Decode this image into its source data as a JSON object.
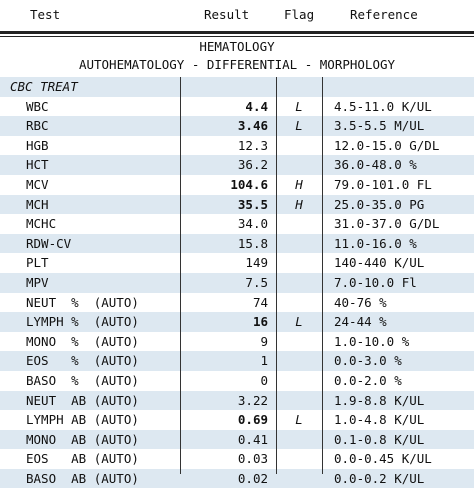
{
  "header": {
    "test": "Test",
    "result": "Result",
    "flag": "Flag",
    "reference": "Reference"
  },
  "section": {
    "line1": "HEMATOLOGY",
    "line2": "AUTOHEMATOLOGY - DIFFERENTIAL - MORPHOLOGY"
  },
  "subheader": "CBC TREAT",
  "rows": [
    {
      "test": "WBC",
      "result": "4.4",
      "bold": true,
      "flag": "L",
      "reference": "4.5-11.0 K/UL"
    },
    {
      "test": "RBC",
      "result": "3.46",
      "bold": true,
      "flag": "L",
      "reference": "3.5-5.5 M/UL"
    },
    {
      "test": "HGB",
      "result": "12.3",
      "bold": false,
      "flag": "",
      "reference": "12.0-15.0 G/DL"
    },
    {
      "test": "HCT",
      "result": "36.2",
      "bold": false,
      "flag": "",
      "reference": "36.0-48.0 %"
    },
    {
      "test": "MCV",
      "result": "104.6",
      "bold": true,
      "flag": "H",
      "reference": "79.0-101.0 FL"
    },
    {
      "test": "MCH",
      "result": "35.5",
      "bold": true,
      "flag": "H",
      "reference": "25.0-35.0 PG"
    },
    {
      "test": "MCHC",
      "result": "34.0",
      "bold": false,
      "flag": "",
      "reference": "31.0-37.0 G/DL"
    },
    {
      "test": "RDW-CV",
      "result": "15.8",
      "bold": false,
      "flag": "",
      "reference": "11.0-16.0 %"
    },
    {
      "test": "PLT",
      "result": "149",
      "bold": false,
      "flag": "",
      "reference": "140-440 K/UL"
    },
    {
      "test": "MPV",
      "result": "7.5",
      "bold": false,
      "flag": "",
      "reference": "7.0-10.0 Fl"
    },
    {
      "test": "NEUT  %  (AUTO)",
      "result": "74",
      "bold": false,
      "flag": "",
      "reference": "40-76 %"
    },
    {
      "test": "LYMPH %  (AUTO)",
      "result": "16",
      "bold": true,
      "flag": "L",
      "reference": "24-44 %"
    },
    {
      "test": "MONO  %  (AUTO)",
      "result": "9",
      "bold": false,
      "flag": "",
      "reference": "1.0-10.0 %"
    },
    {
      "test": "EOS   %  (AUTO)",
      "result": "1",
      "bold": false,
      "flag": "",
      "reference": "0.0-3.0 %"
    },
    {
      "test": "BASO  %  (AUTO)",
      "result": "0",
      "bold": false,
      "flag": "",
      "reference": "0.0-2.0 %"
    },
    {
      "test": "NEUT  AB (AUTO)",
      "result": "3.22",
      "bold": false,
      "flag": "",
      "reference": "1.9-8.8 K/UL"
    },
    {
      "test": "LYMPH AB (AUTO)",
      "result": "0.69",
      "bold": true,
      "flag": "L",
      "reference": "1.0-4.8 K/UL"
    },
    {
      "test": "MONO  AB (AUTO)",
      "result": "0.41",
      "bold": false,
      "flag": "",
      "reference": "0.1-0.8 K/UL"
    },
    {
      "test": "EOS   AB (AUTO)",
      "result": "0.03",
      "bold": false,
      "flag": "",
      "reference": "0.0-0.45 K/UL"
    },
    {
      "test": "BASO  AB (AUTO)",
      "result": "0.02",
      "bold": false,
      "flag": "",
      "reference": "0.0-0.2 K/UL"
    }
  ]
}
